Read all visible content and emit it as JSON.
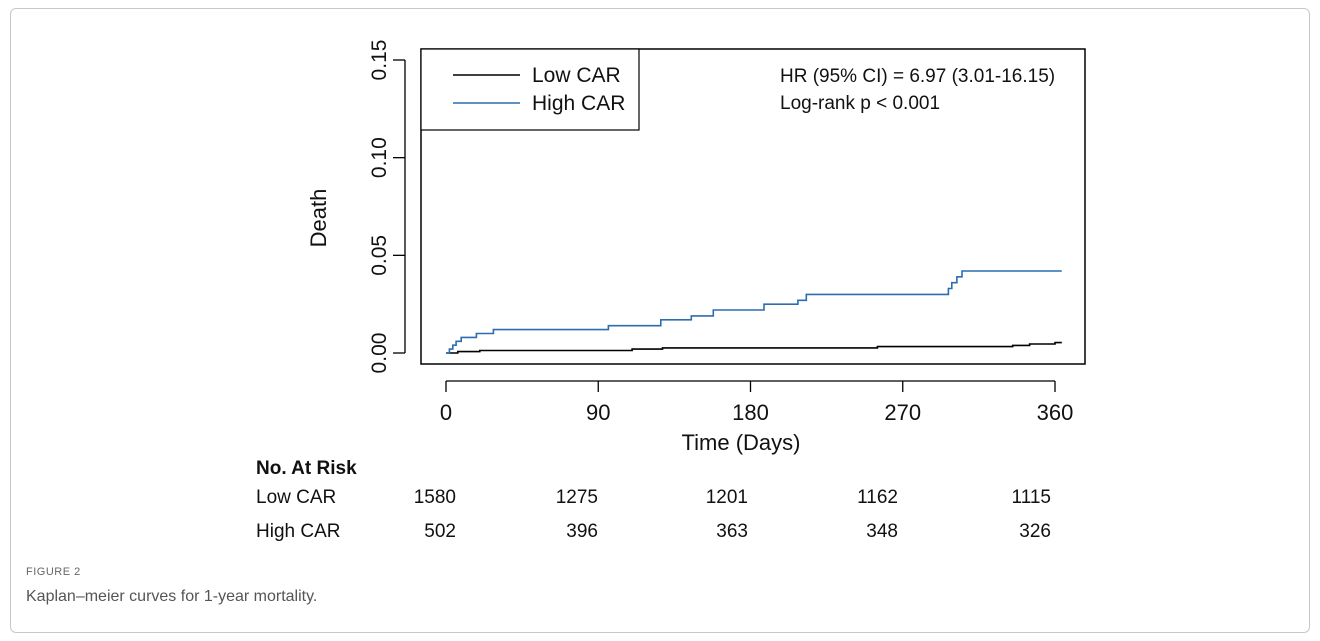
{
  "chart_data": {
    "type": "line",
    "title": "",
    "xlabel": "Time (Days)",
    "ylabel": "Death",
    "xlim": [
      0,
      364
    ],
    "ylim": [
      0,
      0.15
    ],
    "x_ticks": [
      0,
      90,
      180,
      270,
      360
    ],
    "y_ticks": [
      "0.00",
      "0.05",
      "0.10",
      "0.15"
    ],
    "legend_position": "top-left",
    "annotations": [
      "HR (95% CI) = 6.97 (3.01-16.15)",
      "Log-rank p < 0.001"
    ],
    "series": [
      {
        "name": "Low CAR",
        "color": "#000000",
        "points": [
          [
            0,
            0
          ],
          [
            7,
            0
          ],
          [
            7,
            0.0007
          ],
          [
            20,
            0.0007
          ],
          [
            20,
            0.0013
          ],
          [
            110,
            0.0013
          ],
          [
            110,
            0.002
          ],
          [
            128,
            0.002
          ],
          [
            128,
            0.0026
          ],
          [
            255,
            0.0026
          ],
          [
            255,
            0.0033
          ],
          [
            335,
            0.0033
          ],
          [
            335,
            0.0039
          ],
          [
            345,
            0.0039
          ],
          [
            345,
            0.0046
          ],
          [
            360,
            0.0046
          ],
          [
            360,
            0.0053
          ],
          [
            364,
            0.0053
          ]
        ]
      },
      {
        "name": "High CAR",
        "color": "#2c6db0",
        "points": [
          [
            0,
            0
          ],
          [
            2,
            0
          ],
          [
            2,
            0.002
          ],
          [
            4,
            0.002
          ],
          [
            4,
            0.004
          ],
          [
            6,
            0.004
          ],
          [
            6,
            0.006
          ],
          [
            9,
            0.006
          ],
          [
            9,
            0.008
          ],
          [
            18,
            0.008
          ],
          [
            18,
            0.01
          ],
          [
            28,
            0.01
          ],
          [
            28,
            0.012
          ],
          [
            96,
            0.012
          ],
          [
            96,
            0.014
          ],
          [
            127,
            0.014
          ],
          [
            127,
            0.017
          ],
          [
            145,
            0.017
          ],
          [
            145,
            0.019
          ],
          [
            158,
            0.019
          ],
          [
            158,
            0.022
          ],
          [
            188,
            0.022
          ],
          [
            188,
            0.025
          ],
          [
            208,
            0.025
          ],
          [
            208,
            0.027
          ],
          [
            213,
            0.027
          ],
          [
            213,
            0.03
          ],
          [
            297,
            0.03
          ],
          [
            297,
            0.033
          ],
          [
            299,
            0.033
          ],
          [
            299,
            0.036
          ],
          [
            302,
            0.036
          ],
          [
            302,
            0.039
          ],
          [
            305,
            0.039
          ],
          [
            305,
            0.042
          ],
          [
            364,
            0.042
          ]
        ]
      }
    ],
    "risk_table": {
      "title": "No. At Risk",
      "time_points": [
        0,
        90,
        180,
        270,
        360
      ],
      "rows": [
        {
          "label": "Low CAR",
          "values": [
            "1580",
            "1275",
            "1201",
            "1162",
            "1115"
          ]
        },
        {
          "label": "High CAR",
          "values": [
            "502",
            "396",
            "363",
            "348",
            "326"
          ]
        }
      ]
    }
  },
  "figure": {
    "label": "FIGURE 2",
    "caption": "Kaplan–meier curves for 1-year mortality."
  }
}
